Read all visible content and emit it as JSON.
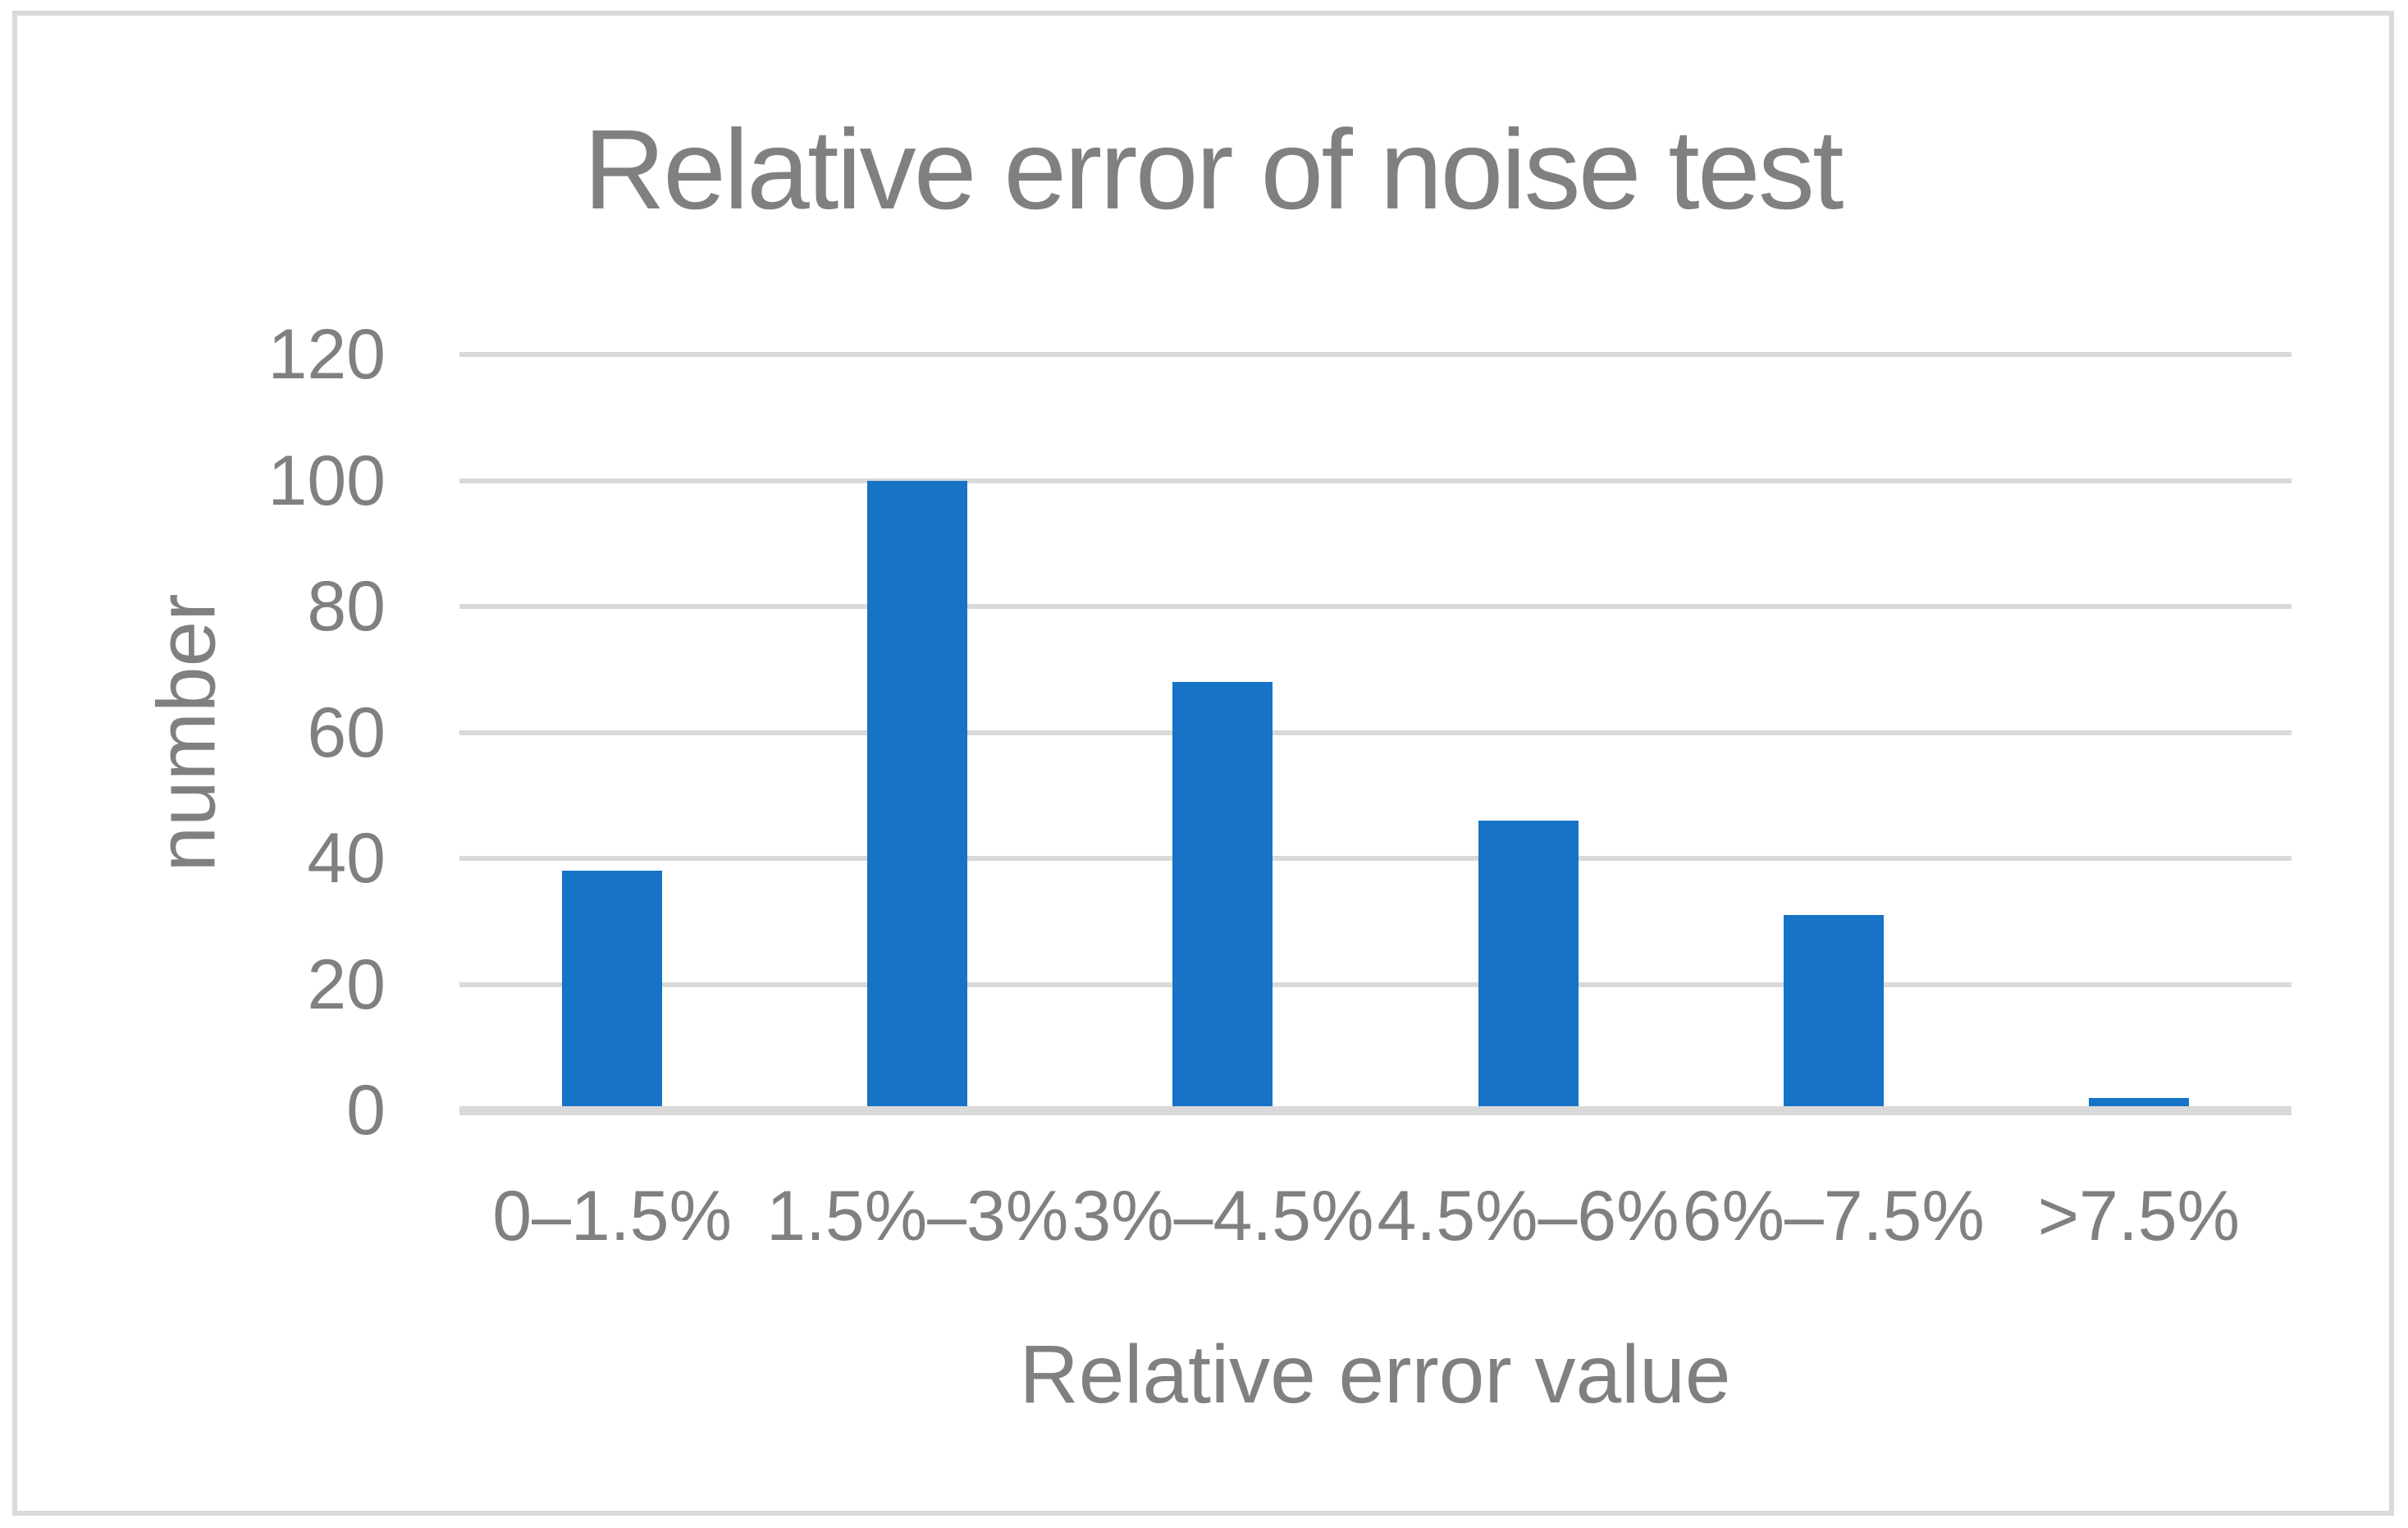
{
  "chart_data": {
    "type": "bar",
    "title": "Relative error of noise test",
    "xlabel": "Relative error value",
    "ylabel": "number",
    "categories": [
      "0–1.5%",
      "1.5%–3%",
      "3%–4.5%",
      "4.5%–6%",
      "6%–7.5%",
      ">7.5%"
    ],
    "values": [
      38,
      100,
      68,
      46,
      31,
      2
    ],
    "ylim": [
      0,
      120
    ],
    "yticks": [
      0,
      20,
      40,
      60,
      80,
      100,
      120
    ],
    "grid": "horizontal",
    "legend_position": "none",
    "bar_color": "#1773C6",
    "gridline_color": "#D9D9D9",
    "axis_line_color": "#D9D9D9",
    "text_color": "#808080",
    "frame_color": "#D9D9D9"
  }
}
